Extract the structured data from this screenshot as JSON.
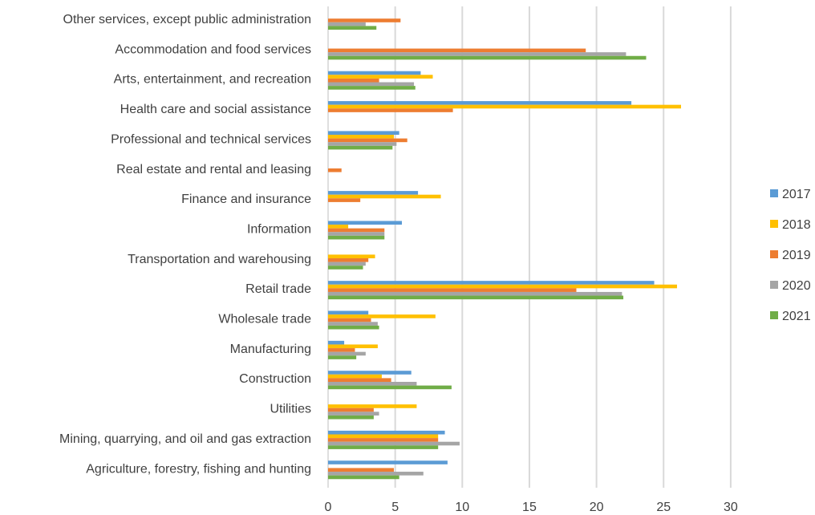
{
  "chart_data": {
    "type": "bar",
    "orientation": "horizontal",
    "title": "",
    "xlabel": "",
    "ylabel": "",
    "xlim": [
      0,
      30
    ],
    "xticks": [
      0,
      5,
      10,
      15,
      20,
      25,
      30
    ],
    "grid": true,
    "legend_position": "right",
    "categories": [
      "Other services, except public administration",
      "Accommodation and food services",
      "Arts, entertainment, and recreation",
      "Health care and social assistance",
      "Professional and technical services",
      "Real estate and rental and leasing",
      "Finance and insurance",
      "Information",
      "Transportation and warehousing",
      "Retail trade",
      "Wholesale trade",
      "Manufacturing",
      "Construction",
      "Utilities",
      "Mining, quarrying, and oil and gas extraction",
      "Agriculture, forestry, fishing and hunting"
    ],
    "series": [
      {
        "name": "2017",
        "color": "#5b9bd5",
        "values": [
          0,
          0,
          6.9,
          22.6,
          5.3,
          0,
          6.7,
          5.5,
          0,
          24.3,
          3.0,
          1.2,
          6.2,
          0,
          8.7,
          8.9
        ]
      },
      {
        "name": "2018",
        "color": "#ffc000",
        "values": [
          0,
          0,
          7.8,
          26.3,
          4.9,
          0,
          8.4,
          1.5,
          3.5,
          26.0,
          8.0,
          3.7,
          4.0,
          6.6,
          8.2,
          0
        ]
      },
      {
        "name": "2019",
        "color": "#ed7d31",
        "values": [
          5.4,
          19.2,
          3.8,
          9.3,
          5.9,
          1.0,
          2.4,
          4.2,
          3.0,
          18.5,
          3.2,
          2.0,
          4.7,
          3.4,
          8.2,
          4.9
        ]
      },
      {
        "name": "2020",
        "color": "#a5a5a5",
        "values": [
          2.8,
          22.2,
          6.4,
          0,
          5.1,
          0,
          0,
          4.2,
          2.8,
          21.9,
          3.7,
          2.8,
          6.6,
          3.8,
          9.8,
          7.1
        ]
      },
      {
        "name": "2021",
        "color": "#70ad47",
        "values": [
          3.6,
          23.7,
          6.5,
          0,
          4.8,
          0,
          0,
          4.2,
          2.6,
          22.0,
          3.8,
          2.1,
          9.2,
          3.4,
          8.2,
          5.3
        ]
      }
    ]
  }
}
